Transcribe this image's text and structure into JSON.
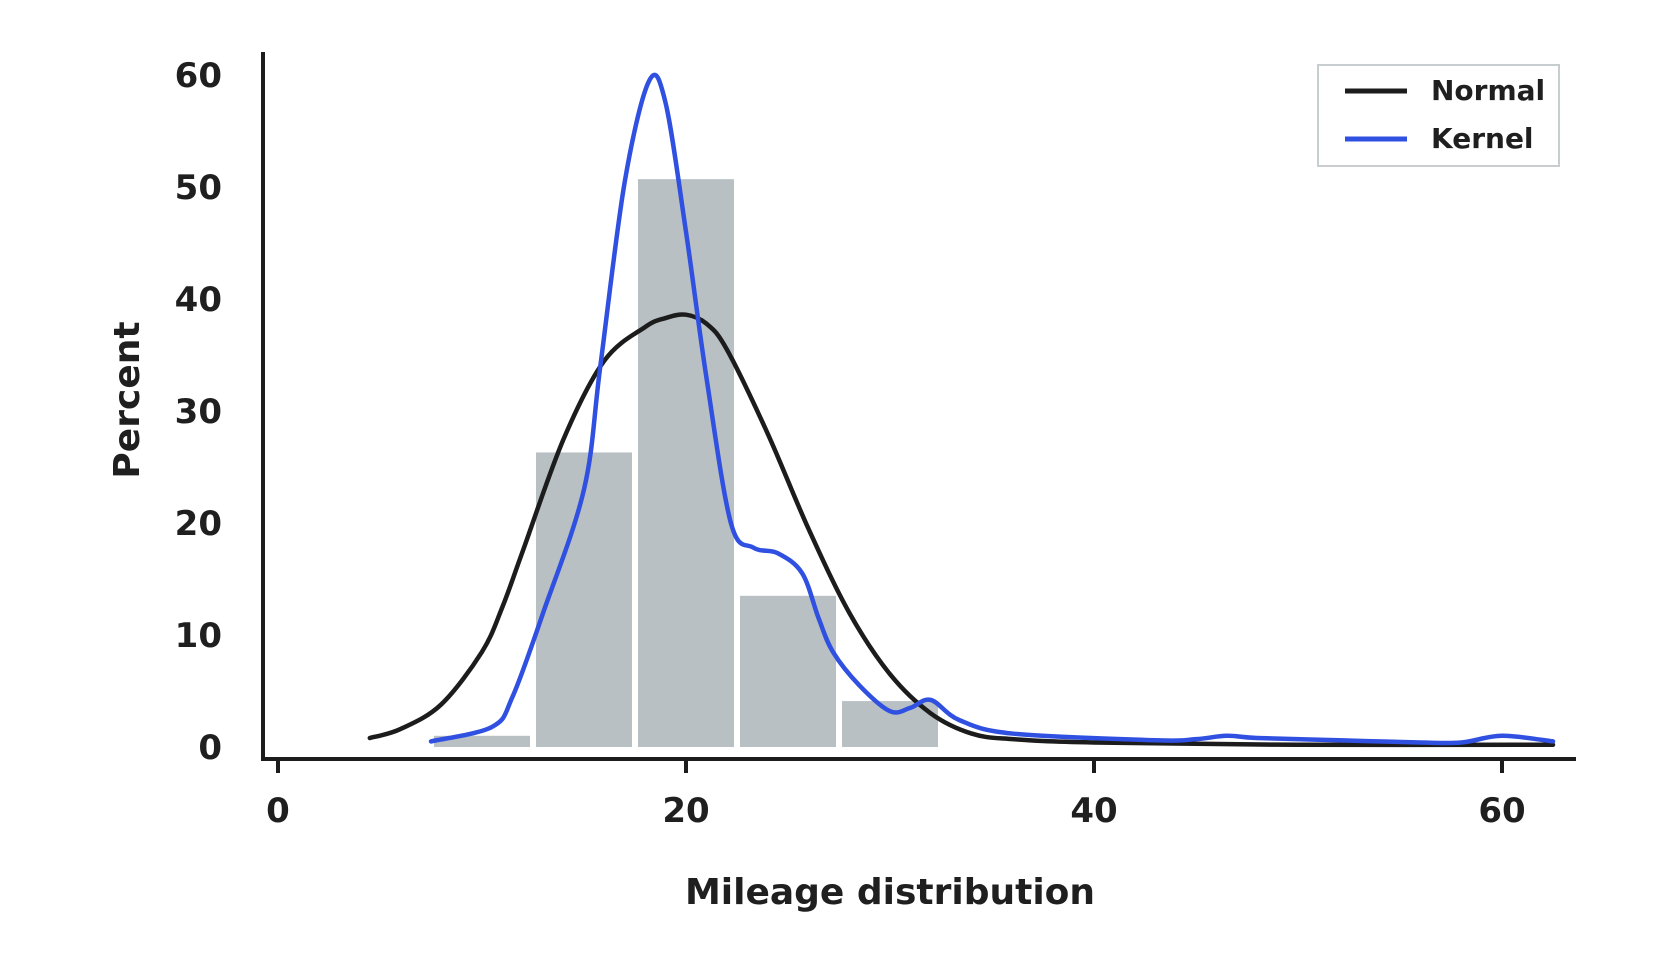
{
  "chart_data": {
    "type": "bar",
    "title": "",
    "xlabel": "Mileage distribution",
    "ylabel": "Percent",
    "xlim": [
      -1,
      63
    ],
    "ylim": [
      0,
      60
    ],
    "xticks": [
      0,
      20,
      40,
      60
    ],
    "yticks": [
      0,
      10,
      20,
      30,
      40,
      50,
      60
    ],
    "grid": false,
    "legend_position": "top-right",
    "histogram": {
      "bin_edges": [
        7.5,
        12.5,
        17.5,
        22.5,
        27.5,
        32.5,
        37.5,
        42.5,
        47.5,
        52.5,
        57.5,
        62.5
      ],
      "values": [
        1.0,
        26.3,
        50.7,
        13.5,
        4.1,
        0.0,
        0.0,
        0.0,
        0.0,
        0.0,
        0.0
      ],
      "color": "#b8c0c4"
    },
    "series": [
      {
        "name": "Normal",
        "color": "#1c1c1c",
        "x": [
          4.5,
          6,
          8,
          10,
          11,
          12,
          14,
          16,
          18,
          19,
          20,
          21,
          22,
          24,
          26,
          28,
          30,
          32,
          34,
          36,
          40,
          50,
          62.5
        ],
        "y": [
          0.8,
          1.6,
          3.8,
          8.5,
          12.5,
          17.5,
          27.5,
          34.5,
          37.5,
          38.3,
          38.6,
          37.8,
          35.5,
          28.0,
          19.5,
          12.0,
          6.5,
          3.0,
          1.2,
          0.7,
          0.4,
          0.2,
          0.2
        ]
      },
      {
        "name": "Kernel",
        "color": "#2f50e0",
        "x": [
          7.5,
          10.5,
          11.5,
          13,
          15,
          15.8,
          17,
          18.2,
          19,
          20,
          21,
          22.2,
          23.3,
          24.5,
          25.7,
          26.5,
          27.2,
          28.5,
          30,
          31,
          32,
          33.4,
          36,
          43,
          45,
          46.5,
          48,
          52,
          56,
          58,
          60,
          62.5
        ],
        "y": [
          0.5,
          1.8,
          4.5,
          12.0,
          23.0,
          34.0,
          50.5,
          59.5,
          57.5,
          46.0,
          33.0,
          20.0,
          17.8,
          17.3,
          15.5,
          11.5,
          8.5,
          5.5,
          3.2,
          3.5,
          4.2,
          2.4,
          1.2,
          0.6,
          0.7,
          1.0,
          0.8,
          0.6,
          0.4,
          0.4,
          1.0,
          0.5
        ]
      }
    ]
  }
}
